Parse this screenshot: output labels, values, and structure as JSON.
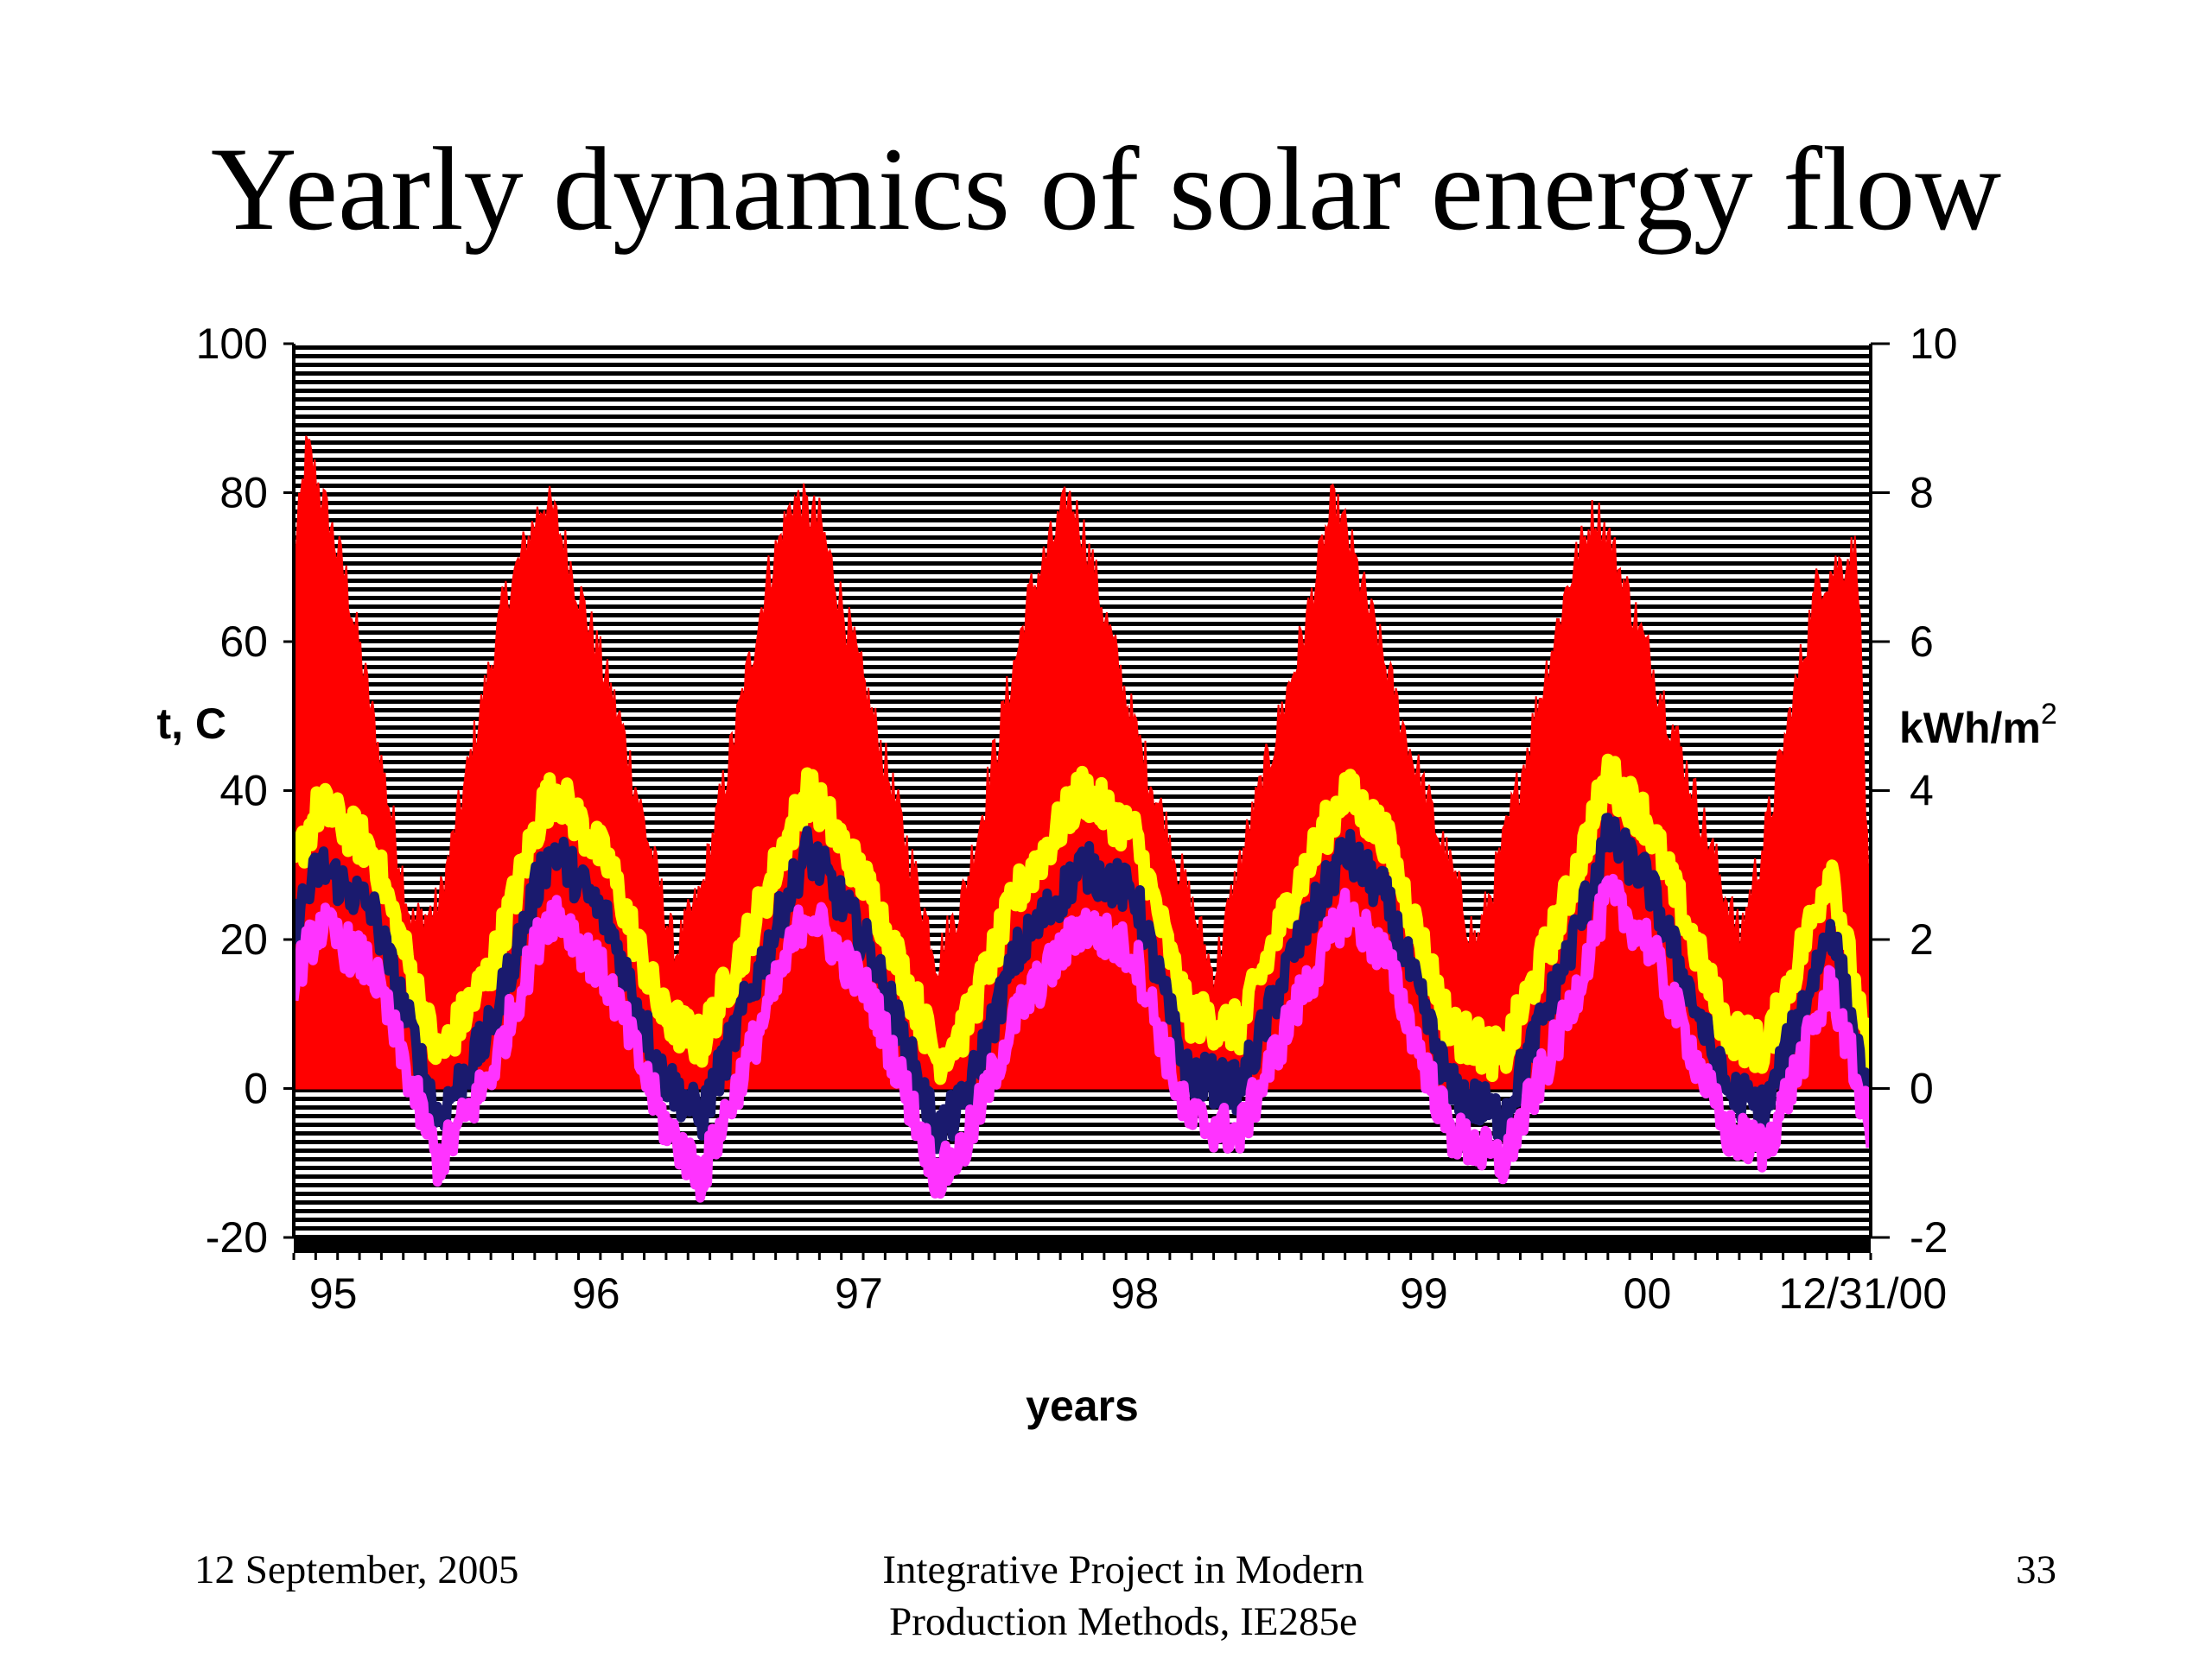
{
  "slide": {
    "title": "Yearly dynamics of solar energy flow",
    "footer_date": "12 September, 2005",
    "footer_course_line1": "Integrative Project in Modern",
    "footer_course_line2": "Production Methods, IE285e",
    "page_number": "33"
  },
  "chart_data": {
    "type": "area",
    "title": "",
    "xlabel": "years",
    "ylabel_left": "t, C",
    "ylabel_right_base": "kWh/m",
    "ylabel_right_sup": "2",
    "y_left_lim": [
      -20,
      100
    ],
    "y_left_ticks": [
      "100",
      "80",
      "60",
      "40",
      "20",
      "0",
      "-20"
    ],
    "y_right_lim": [
      -2,
      10
    ],
    "y_right_ticks": [
      "10",
      "8",
      "6",
      "4",
      "2",
      "0",
      "-2"
    ],
    "x_lim": [
      1995.0,
      2001.0
    ],
    "x_tick_labels": [
      {
        "x": 1995.15,
        "label": "95"
      },
      {
        "x": 1996.15,
        "label": "96"
      },
      {
        "x": 1997.15,
        "label": "97"
      },
      {
        "x": 1998.2,
        "label": "98"
      },
      {
        "x": 1999.3,
        "label": "99"
      },
      {
        "x": 2000.15,
        "label": "00"
      },
      {
        "x": 2000.97,
        "label": "12/31/00"
      }
    ],
    "grid": true,
    "background": "horizontal black and white stripes",
    "series": [
      {
        "color": "#ff0000",
        "axis": "right",
        "x": [
          1995.0,
          1995.05,
          1995.2,
          1995.45,
          1995.55,
          1995.8,
          1995.95,
          1996.0,
          1996.25,
          1996.45,
          1996.55,
          1996.8,
          1996.9,
          1997.0,
          1997.2,
          1997.45,
          1997.55,
          1997.8,
          1997.95,
          1998.0,
          1998.2,
          1998.5,
          1998.6,
          1998.85,
          1998.95,
          1999.0,
          1999.25,
          1999.5,
          1999.6,
          1999.85,
          1999.95,
          2000.0,
          2000.25,
          2000.5,
          2000.6,
          2000.8,
          2000.95,
          2001.0
        ],
        "values": [
          7.0,
          8.6,
          6.8,
          2.2,
          2.4,
          6.5,
          7.9,
          7.6,
          4.8,
          1.8,
          2.6,
          6.8,
          7.9,
          7.6,
          5.0,
          1.7,
          2.6,
          6.6,
          7.9,
          7.5,
          4.8,
          1.5,
          3.0,
          6.2,
          7.8,
          7.5,
          4.5,
          1.9,
          3.2,
          6.8,
          7.7,
          7.4,
          4.8,
          2.0,
          3.4,
          6.8,
          7.2,
          1.6
        ]
      },
      {
        "color": "#ffff00",
        "axis": "left",
        "x": [
          1995.0,
          1995.1,
          1995.3,
          1995.55,
          1995.75,
          1995.95,
          1996.0,
          1996.2,
          1996.4,
          1996.55,
          1996.75,
          1996.95,
          1997.0,
          1997.2,
          1997.45,
          1997.55,
          1997.75,
          1998.0,
          1998.2,
          1998.4,
          1998.6,
          1998.8,
          1999.0,
          1999.15,
          1999.4,
          1999.6,
          1999.85,
          2000.0,
          2000.15,
          2000.45,
          2000.6,
          2000.85,
          2001.0
        ],
        "values": [
          30,
          38,
          32,
          4,
          16,
          38,
          40,
          30,
          10,
          6,
          22,
          40,
          38,
          26,
          4,
          8,
          26,
          40,
          34,
          10,
          8,
          26,
          40,
          34,
          8,
          4,
          26,
          42,
          36,
          8,
          5,
          30,
          2
        ]
      },
      {
        "color": "#1a1a6e",
        "axis": "left",
        "x": [
          1995.0,
          1995.1,
          1995.3,
          1995.55,
          1995.75,
          1995.95,
          1996.0,
          1996.2,
          1996.4,
          1996.55,
          1996.75,
          1996.95,
          1997.0,
          1997.2,
          1997.45,
          1997.55,
          1997.75,
          1998.0,
          1998.2,
          1998.4,
          1998.6,
          1998.8,
          1999.0,
          1999.15,
          1999.4,
          1999.6,
          1999.85,
          2000.0,
          2000.15,
          2000.45,
          2000.6,
          2000.85,
          2001.0
        ],
        "values": [
          22,
          30,
          24,
          -4,
          8,
          30,
          32,
          22,
          2,
          -4,
          14,
          32,
          30,
          18,
          -6,
          -2,
          18,
          30,
          26,
          2,
          0,
          18,
          32,
          26,
          0,
          -4,
          18,
          34,
          28,
          0,
          -3,
          22,
          -4
        ]
      },
      {
        "color": "#ff33ff",
        "axis": "left",
        "x": [
          1995.0,
          1995.1,
          1995.3,
          1995.55,
          1995.75,
          1995.95,
          1996.0,
          1996.2,
          1996.4,
          1996.55,
          1996.75,
          1996.95,
          1997.0,
          1997.2,
          1997.45,
          1997.55,
          1997.75,
          1998.0,
          1998.2,
          1998.4,
          1998.6,
          1998.8,
          1999.0,
          1999.15,
          1999.4,
          1999.6,
          1999.85,
          2000.0,
          2000.15,
          2000.45,
          2000.6,
          2000.85,
          2001.0
        ],
        "values": [
          15,
          22,
          16,
          -10,
          2,
          22,
          24,
          14,
          -4,
          -12,
          6,
          24,
          22,
          12,
          -12,
          -8,
          10,
          22,
          18,
          -4,
          -6,
          10,
          24,
          18,
          -6,
          -10,
          10,
          26,
          20,
          -6,
          -8,
          14,
          -6
        ]
      }
    ]
  }
}
